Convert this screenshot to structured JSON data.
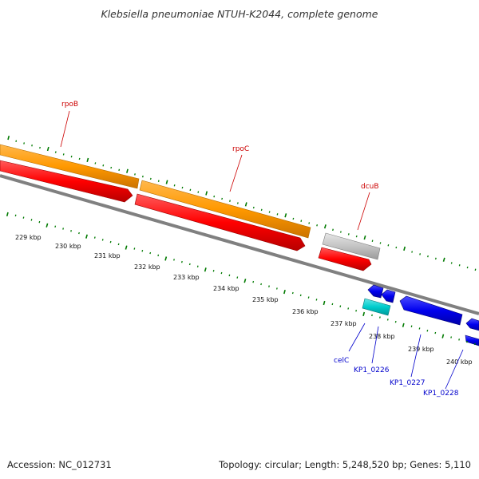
{
  "title": "Klebsiella pneumoniae NTUH-K2044, complete genome",
  "footer": {
    "accession": "Accession: NC_012731",
    "summary": "Topology: circular; Length: 5,248,520 bp; Genes: 5,110"
  },
  "ruler_labels": [
    "229 kbp",
    "230 kbp",
    "231 kbp",
    "232 kbp",
    "233 kbp",
    "234 kbp",
    "235 kbp",
    "236 kbp",
    "237 kbp",
    "238 kbp",
    "239 kbp",
    "240 kbp"
  ],
  "genes": [
    {
      "label": "rpoB",
      "color": "#cc0000"
    },
    {
      "label": "rpoC",
      "color": "#cc0000"
    },
    {
      "label": "dcuB",
      "color": "#cc0000"
    },
    {
      "label": "celC",
      "color": "#0000cc"
    },
    {
      "label": "KP1_0226",
      "color": "#0000cc"
    },
    {
      "label": "KP1_0227",
      "color": "#0000cc"
    },
    {
      "label": "KP1_0228",
      "color": "#0000cc"
    }
  ],
  "colors": {
    "cog_feature": "#ff9900",
    "cds_forward": "#ff0000",
    "rna_feature": "#c0c0c0",
    "cds_reverse": "#0000ee",
    "misc_feature": "#00cccc",
    "backbone": "#808080",
    "ticks": "#007a00",
    "label_forward": "#cc0000",
    "label_reverse": "#0000cc"
  }
}
